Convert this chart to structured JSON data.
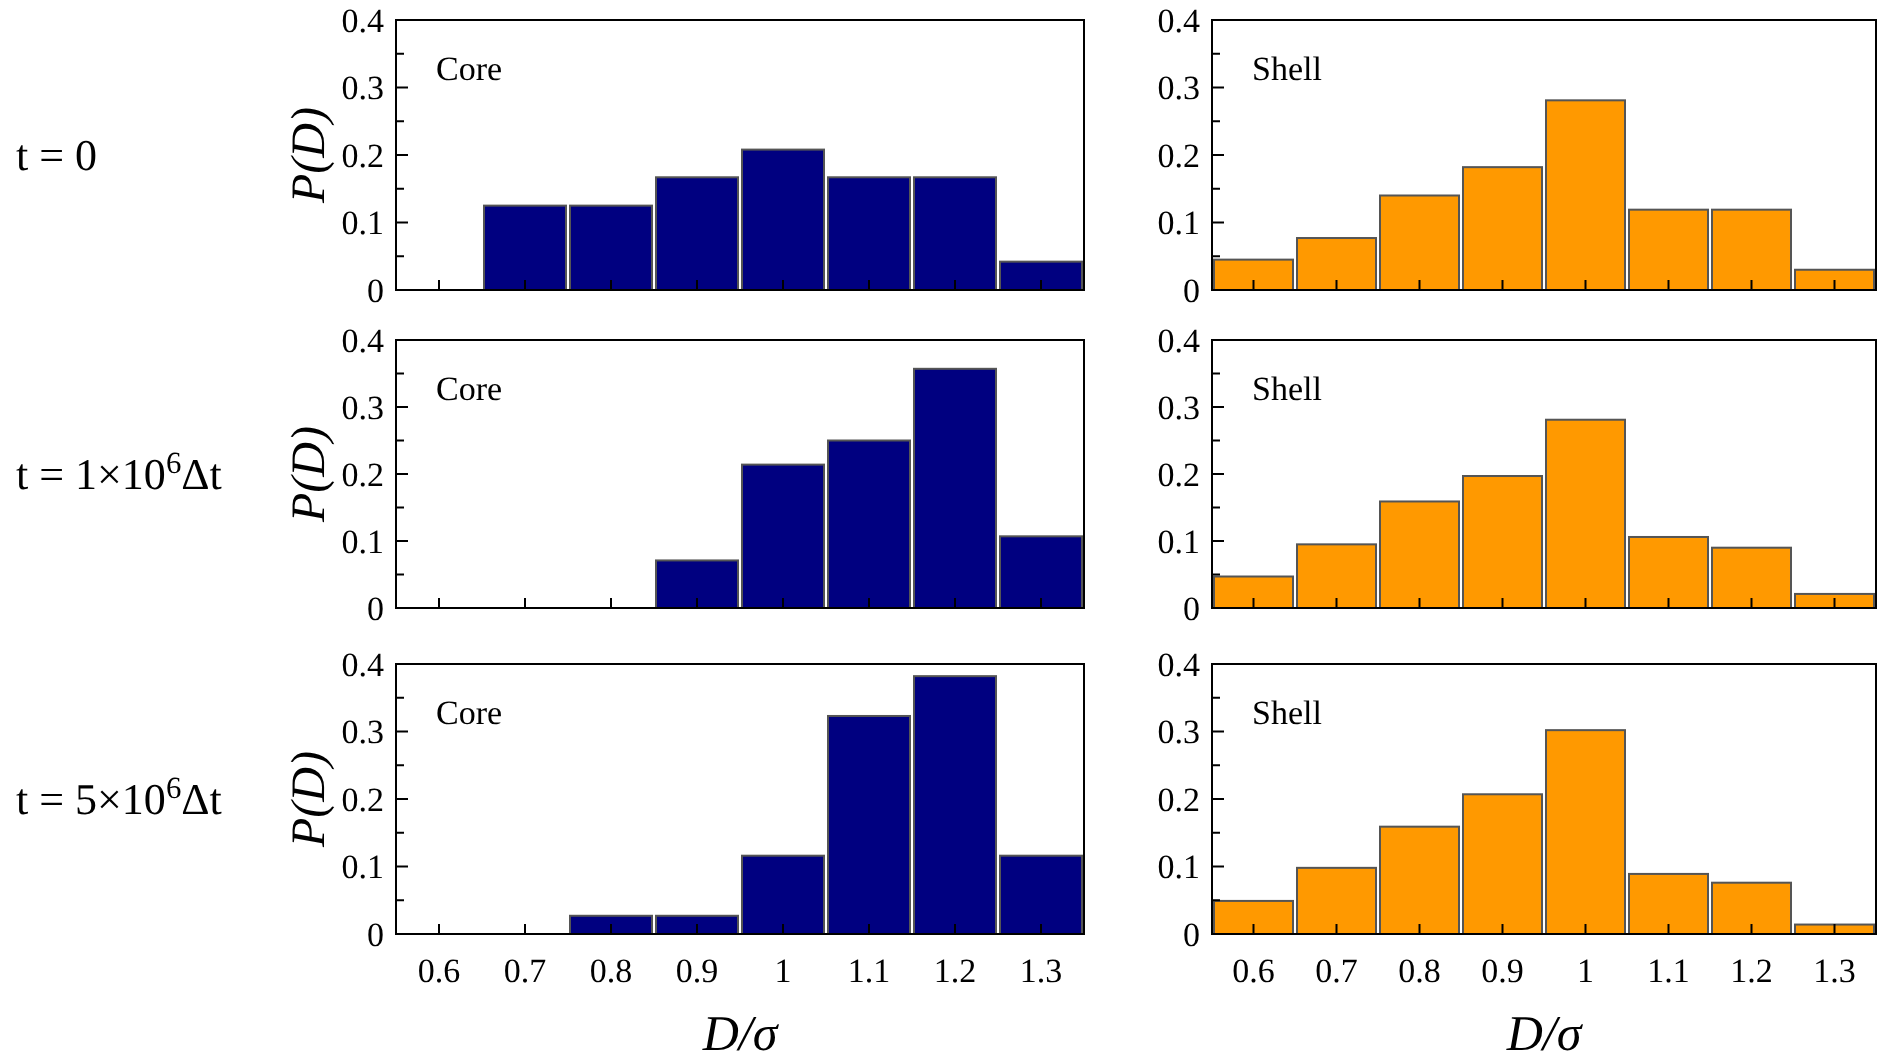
{
  "chart_data": [
    {
      "type": "histogram",
      "title": "t = 0",
      "ylabel": "P(D)",
      "annotations": [
        "Core"
      ],
      "bins": [
        0.55,
        0.65,
        0.75,
        0.85,
        0.95,
        1.05,
        1.15,
        1.25,
        1.35
      ],
      "values": [
        0,
        0.125,
        0.125,
        0.167,
        0.208,
        0.167,
        0.167,
        0.042
      ],
      "color": "#000080",
      "xlim": [
        0.55,
        1.35
      ],
      "xticks": [
        0.6,
        0.7,
        0.8,
        0.9,
        1,
        1.1,
        1.2,
        1.3
      ],
      "ylim": [
        0,
        0.4
      ],
      "yticks": [
        0,
        {
          "value": 0.05,
          "label": null
        },
        0.1,
        {
          "value": 0.15,
          "label": null
        },
        0.2,
        {
          "value": 0.25,
          "label": null
        },
        0.3,
        {
          "value": 0.35,
          "label": null
        },
        0.4
      ],
      "tick_labels": "y"
    },
    {
      "type": "histogram",
      "annotations": [
        "Shell"
      ],
      "bins": [
        0.55,
        0.65,
        0.75,
        0.85,
        0.95,
        1.05,
        1.15,
        1.25,
        1.35
      ],
      "values": [
        0.045,
        0.077,
        0.14,
        0.182,
        0.281,
        0.119,
        0.119,
        0.03
      ],
      "color": "#ff9900",
      "xlim": [
        0.55,
        1.35
      ],
      "xticks": [
        0.6,
        0.7,
        0.8,
        0.9,
        1,
        1.1,
        1.2,
        1.3
      ],
      "ylim": [
        0,
        0.4
      ],
      "yticks": [
        0,
        {
          "value": 0.05,
          "label": null
        },
        0.1,
        {
          "value": 0.15,
          "label": null
        },
        0.2,
        {
          "value": 0.25,
          "label": null
        },
        0.3,
        {
          "value": 0.35,
          "label": null
        },
        0.4
      ],
      "tick_labels": "y"
    },
    {
      "type": "histogram",
      "title": "t = 1×10$^{6}$Δt",
      "ylabel": "P(D)",
      "annotations": [
        "Core"
      ],
      "bins": [
        0.55,
        0.65,
        0.75,
        0.85,
        0.95,
        1.05,
        1.15,
        1.25,
        1.35
      ],
      "values": [
        0,
        0,
        0,
        0.071,
        0.214,
        0.25,
        0.357,
        0.107
      ],
      "color": "#000080",
      "xlim": [
        0.55,
        1.35
      ],
      "xticks": [
        0.6,
        0.7,
        0.8,
        0.9,
        1,
        1.1,
        1.2,
        1.3
      ],
      "ylim": [
        0,
        0.4
      ],
      "yticks": [
        0,
        {
          "value": 0.05,
          "label": null
        },
        0.1,
        {
          "value": 0.15,
          "label": null
        },
        0.2,
        {
          "value": 0.25,
          "label": null
        },
        0.3,
        {
          "value": 0.35,
          "label": null
        },
        0.4
      ],
      "tick_labels": "y"
    },
    {
      "type": "histogram",
      "annotations": [
        "Shell"
      ],
      "bins": [
        0.55,
        0.65,
        0.75,
        0.85,
        0.95,
        1.05,
        1.15,
        1.25,
        1.35
      ],
      "values": [
        0.047,
        0.095,
        0.159,
        0.197,
        0.281,
        0.106,
        0.09,
        0.021
      ],
      "color": "#ff9900",
      "xlim": [
        0.55,
        1.35
      ],
      "xticks": [
        0.6,
        0.7,
        0.8,
        0.9,
        1,
        1.1,
        1.2,
        1.3
      ],
      "ylim": [
        0,
        0.4
      ],
      "yticks": [
        0,
        {
          "value": 0.05,
          "label": null
        },
        0.1,
        {
          "value": 0.15,
          "label": null
        },
        0.2,
        {
          "value": 0.25,
          "label": null
        },
        0.3,
        {
          "value": 0.35,
          "label": null
        },
        0.4
      ],
      "tick_labels": "y"
    },
    {
      "type": "histogram",
      "title": "t = 5×10$^{6}$Δt",
      "ylabel": "P(D)",
      "xlabel": "D/σ",
      "annotations": [
        "Core"
      ],
      "bins": [
        0.55,
        0.65,
        0.75,
        0.85,
        0.95,
        1.05,
        1.15,
        1.25,
        1.35
      ],
      "values": [
        0,
        0,
        0.027,
        0.027,
        0.116,
        0.323,
        0.382,
        0.116
      ],
      "color": "#000080",
      "xlim": [
        0.55,
        1.35
      ],
      "xticks": [
        0.6,
        0.7,
        0.8,
        0.9,
        1,
        1.1,
        1.2,
        1.3
      ],
      "ylim": [
        0,
        0.4
      ],
      "yticks": [
        0,
        {
          "value": 0.05,
          "label": null
        },
        0.1,
        {
          "value": 0.15,
          "label": null
        },
        0.2,
        {
          "value": 0.25,
          "label": null
        },
        0.3,
        {
          "value": 0.35,
          "label": null
        },
        0.4
      ]
    },
    {
      "type": "histogram",
      "xlabel": "D/σ",
      "annotations": [
        "Shell"
      ],
      "bins": [
        0.55,
        0.65,
        0.75,
        0.85,
        0.95,
        1.05,
        1.15,
        1.25,
        1.35
      ],
      "values": [
        0.049,
        0.098,
        0.159,
        0.207,
        0.302,
        0.089,
        0.076,
        0.014
      ],
      "color": "#ff9900",
      "xlim": [
        0.55,
        1.35
      ],
      "xticks": [
        0.6,
        0.7,
        0.8,
        0.9,
        1,
        1.1,
        1.2,
        1.3
      ],
      "ylim": [
        0,
        0.4
      ],
      "yticks": [
        0,
        {
          "value": 0.05,
          "label": null
        },
        0.1,
        {
          "value": 0.15,
          "label": null
        },
        0.2,
        {
          "value": 0.25,
          "label": null
        },
        0.3,
        {
          "value": 0.35,
          "label": null
        },
        0.4
      ]
    }
  ]
}
